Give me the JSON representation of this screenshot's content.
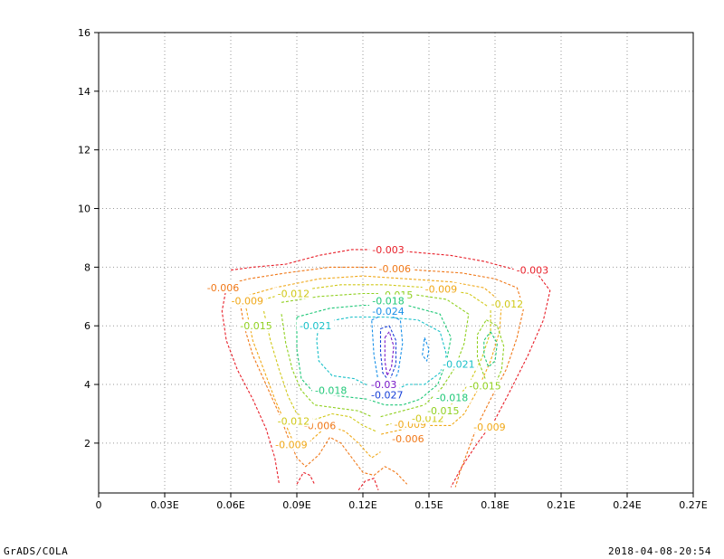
{
  "chart_data": {
    "type": "contour",
    "xlim": [
      0,
      0.27
    ],
    "ylim": [
      0.3,
      16
    ],
    "x_ticks": [
      {
        "value": 0,
        "label": "0"
      },
      {
        "value": 0.03,
        "label": "0.03E"
      },
      {
        "value": 0.06,
        "label": "0.06E"
      },
      {
        "value": 0.09,
        "label": "0.09E"
      },
      {
        "value": 0.12,
        "label": "0.12E"
      },
      {
        "value": 0.15,
        "label": "0.15E"
      },
      {
        "value": 0.18,
        "label": "0.18E"
      },
      {
        "value": 0.21,
        "label": "0.21E"
      },
      {
        "value": 0.24,
        "label": "0.24E"
      },
      {
        "value": 0.27,
        "label": "0.27E"
      }
    ],
    "y_ticks": [
      {
        "value": 2,
        "label": "2"
      },
      {
        "value": 4,
        "label": "4"
      },
      {
        "value": 6,
        "label": "6"
      },
      {
        "value": 8,
        "label": "8"
      },
      {
        "value": 10,
        "label": "10"
      },
      {
        "value": 12,
        "label": "12"
      },
      {
        "value": 14,
        "label": "14"
      },
      {
        "value": 16,
        "label": "16"
      }
    ],
    "grid": true,
    "levels": [
      {
        "value": -0.003,
        "color": "#e8202a",
        "points": [
          [
            0.06,
            7.9
          ],
          [
            0.07,
            8.0
          ],
          [
            0.085,
            8.1
          ],
          [
            0.1,
            8.4
          ],
          [
            0.115,
            8.6
          ],
          [
            0.13,
            8.6
          ],
          [
            0.145,
            8.5
          ],
          [
            0.16,
            8.4
          ],
          [
            0.175,
            8.2
          ],
          [
            0.19,
            7.9
          ],
          [
            0.2,
            7.7
          ],
          [
            0.205,
            7.2
          ],
          [
            0.202,
            6.2
          ],
          [
            0.195,
            5.0
          ],
          [
            0.187,
            3.8
          ],
          [
            0.18,
            2.8
          ],
          [
            0.172,
            2.0
          ],
          [
            0.165,
            1.2
          ],
          [
            0.16,
            0.5
          ]
        ],
        "labels": [
          {
            "x": 0.1315,
            "y": 8.6,
            "text": "-0.003"
          },
          {
            "x": 0.197,
            "y": 7.9,
            "text": "-0.003"
          }
        ]
      },
      {
        "value": -0.003,
        "color": "#e8202a",
        "points": [
          [
            0.058,
            7.3
          ],
          [
            0.056,
            6.5
          ],
          [
            0.058,
            5.5
          ],
          [
            0.063,
            4.5
          ],
          [
            0.07,
            3.5
          ],
          [
            0.076,
            2.5
          ],
          [
            0.08,
            1.5
          ],
          [
            0.082,
            0.6
          ]
        ],
        "labels": []
      },
      {
        "value": -0.003,
        "color": "#e8202a",
        "points": [
          [
            0.09,
            0.6
          ],
          [
            0.093,
            1.0
          ],
          [
            0.096,
            0.9
          ],
          [
            0.098,
            0.6
          ]
        ],
        "labels": []
      },
      {
        "value": -0.003,
        "color": "#e8202a",
        "points": [
          [
            0.118,
            0.4
          ],
          [
            0.121,
            0.7
          ],
          [
            0.125,
            0.8
          ],
          [
            0.127,
            0.4
          ]
        ],
        "labels": []
      },
      {
        "value": -0.006,
        "color": "#f07818",
        "points": [
          [
            0.058,
            7.4
          ],
          [
            0.068,
            7.6
          ],
          [
            0.085,
            7.8
          ],
          [
            0.105,
            8.0
          ],
          [
            0.125,
            8.0
          ],
          [
            0.145,
            7.9
          ],
          [
            0.165,
            7.8
          ],
          [
            0.18,
            7.6
          ],
          [
            0.19,
            7.3
          ],
          [
            0.193,
            6.6
          ],
          [
            0.19,
            5.6
          ],
          [
            0.185,
            4.5
          ],
          [
            0.178,
            3.5
          ],
          [
            0.172,
            2.6
          ],
          [
            0.168,
            1.8
          ],
          [
            0.164,
            1.0
          ],
          [
            0.162,
            0.5
          ]
        ],
        "labels": [
          {
            "x": 0.0565,
            "y": 7.3,
            "text": "-0.006"
          },
          {
            "x": 0.1345,
            "y": 7.95,
            "text": "-0.006"
          },
          {
            "x": 0.1405,
            "y": 2.15,
            "text": "-0.006"
          },
          {
            "x": 0.1005,
            "y": 2.6,
            "text": "-0.006"
          }
        ]
      },
      {
        "value": -0.006,
        "color": "#f07818",
        "points": [
          [
            0.064,
            6.9
          ],
          [
            0.066,
            6.0
          ],
          [
            0.07,
            5.0
          ],
          [
            0.076,
            4.0
          ],
          [
            0.082,
            3.0
          ],
          [
            0.086,
            2.2
          ],
          [
            0.09,
            1.5
          ],
          [
            0.094,
            1.2
          ],
          [
            0.1,
            1.6
          ],
          [
            0.105,
            2.2
          ],
          [
            0.11,
            2.0
          ],
          [
            0.115,
            1.5
          ],
          [
            0.12,
            1.0
          ],
          [
            0.125,
            0.9
          ],
          [
            0.13,
            1.2
          ],
          [
            0.135,
            1.0
          ],
          [
            0.14,
            0.6
          ]
        ],
        "labels": []
      },
      {
        "value": -0.009,
        "color": "#f0a818",
        "points": [
          [
            0.066,
            7.0
          ],
          [
            0.08,
            7.3
          ],
          [
            0.1,
            7.6
          ],
          [
            0.12,
            7.7
          ],
          [
            0.14,
            7.6
          ],
          [
            0.16,
            7.5
          ],
          [
            0.175,
            7.3
          ],
          [
            0.183,
            6.8
          ],
          [
            0.182,
            5.8
          ],
          [
            0.178,
            4.8
          ],
          [
            0.172,
            3.8
          ],
          [
            0.166,
            3.0
          ],
          [
            0.16,
            2.6
          ],
          [
            0.15,
            2.6
          ],
          [
            0.14,
            2.5
          ],
          [
            0.128,
            2.3
          ]
        ],
        "labels": [
          {
            "x": 0.0675,
            "y": 6.85,
            "text": "-0.009"
          },
          {
            "x": 0.1555,
            "y": 7.25,
            "text": "-0.009"
          },
          {
            "x": 0.1415,
            "y": 2.65,
            "text": "-0.009"
          },
          {
            "x": 0.1775,
            "y": 2.55,
            "text": "-0.009"
          },
          {
            "x": 0.0875,
            "y": 1.95,
            "text": "-0.009"
          }
        ]
      },
      {
        "value": -0.009,
        "color": "#f0a818",
        "points": [
          [
            0.067,
            6.6
          ],
          [
            0.07,
            5.5
          ],
          [
            0.075,
            4.5
          ],
          [
            0.08,
            3.5
          ],
          [
            0.084,
            2.8
          ],
          [
            0.088,
            2.1
          ],
          [
            0.092,
            1.8
          ],
          [
            0.098,
            2.2
          ],
          [
            0.104,
            2.6
          ],
          [
            0.112,
            2.4
          ],
          [
            0.118,
            2.0
          ],
          [
            0.124,
            1.5
          ],
          [
            0.128,
            1.7
          ]
        ],
        "labels": []
      },
      {
        "value": -0.012,
        "color": "#d0c818",
        "points": [
          [
            0.075,
            6.9
          ],
          [
            0.09,
            7.2
          ],
          [
            0.11,
            7.4
          ],
          [
            0.13,
            7.4
          ],
          [
            0.15,
            7.3
          ],
          [
            0.168,
            7.1
          ],
          [
            0.178,
            6.6
          ],
          [
            0.178,
            5.8
          ],
          [
            0.174,
            4.9
          ],
          [
            0.168,
            4.0
          ],
          [
            0.16,
            3.3
          ],
          [
            0.15,
            2.9
          ],
          [
            0.14,
            2.8
          ],
          [
            0.13,
            2.6
          ]
        ],
        "labels": [
          {
            "x": 0.0885,
            "y": 7.1,
            "text": "-0.012"
          },
          {
            "x": 0.1855,
            "y": 6.75,
            "text": "-0.012"
          },
          {
            "x": 0.1495,
            "y": 2.85,
            "text": "-0.012"
          },
          {
            "x": 0.0885,
            "y": 2.75,
            "text": "-0.012"
          }
        ]
      },
      {
        "value": -0.012,
        "color": "#d0c818",
        "points": [
          [
            0.075,
            6.5
          ],
          [
            0.078,
            5.5
          ],
          [
            0.082,
            4.5
          ],
          [
            0.086,
            3.6
          ],
          [
            0.09,
            3.0
          ],
          [
            0.098,
            2.8
          ],
          [
            0.106,
            3.0
          ],
          [
            0.114,
            2.9
          ],
          [
            0.12,
            2.6
          ],
          [
            0.126,
            2.4
          ]
        ],
        "labels": []
      },
      {
        "value": -0.015,
        "color": "#90d020",
        "points": [
          [
            0.083,
            6.8
          ],
          [
            0.1,
            7.0
          ],
          [
            0.12,
            7.1
          ],
          [
            0.14,
            7.1
          ],
          [
            0.158,
            6.9
          ],
          [
            0.168,
            6.4
          ],
          [
            0.166,
            5.4
          ],
          [
            0.162,
            4.6
          ],
          [
            0.156,
            3.9
          ],
          [
            0.148,
            3.3
          ],
          [
            0.138,
            3.1
          ],
          [
            0.128,
            2.9
          ]
        ],
        "labels": [
          {
            "x": 0.1355,
            "y": 7.05,
            "text": "-0.015"
          },
          {
            "x": 0.0715,
            "y": 6.0,
            "text": "-0.015"
          },
          {
            "x": 0.1565,
            "y": 3.1,
            "text": "-0.015"
          },
          {
            "x": 0.1755,
            "y": 3.95,
            "text": "-0.015"
          }
        ]
      },
      {
        "value": -0.015,
        "color": "#90d020",
        "points": [
          [
            0.083,
            6.4
          ],
          [
            0.085,
            5.4
          ],
          [
            0.088,
            4.5
          ],
          [
            0.092,
            3.8
          ],
          [
            0.098,
            3.3
          ],
          [
            0.108,
            3.2
          ],
          [
            0.118,
            3.1
          ],
          [
            0.124,
            2.9
          ]
        ],
        "labels": []
      },
      {
        "value": -0.015,
        "color": "#90d020",
        "points": [
          [
            0.176,
            6.2
          ],
          [
            0.181,
            6.0
          ],
          [
            0.184,
            5.3
          ],
          [
            0.183,
            4.5
          ],
          [
            0.18,
            4.0
          ],
          [
            0.176,
            4.1
          ],
          [
            0.172,
            4.9
          ],
          [
            0.172,
            5.7
          ],
          [
            0.176,
            6.2
          ]
        ],
        "labels": []
      },
      {
        "value": -0.018,
        "color": "#20c878",
        "points": [
          [
            0.09,
            6.3
          ],
          [
            0.105,
            6.6
          ],
          [
            0.12,
            6.7
          ],
          [
            0.14,
            6.7
          ],
          [
            0.155,
            6.4
          ],
          [
            0.16,
            5.6
          ],
          [
            0.158,
            4.8
          ],
          [
            0.154,
            4.0
          ],
          [
            0.146,
            3.5
          ],
          [
            0.138,
            3.3
          ],
          [
            0.13,
            3.3
          ],
          [
            0.122,
            3.5
          ],
          [
            0.11,
            3.6
          ],
          [
            0.098,
            3.7
          ],
          [
            0.092,
            4.2
          ],
          [
            0.09,
            5.2
          ],
          [
            0.09,
            6.3
          ]
        ],
        "labels": [
          {
            "x": 0.1315,
            "y": 6.85,
            "text": "-0.018"
          },
          {
            "x": 0.1055,
            "y": 3.8,
            "text": "-0.018"
          },
          {
            "x": 0.1605,
            "y": 3.55,
            "text": "-0.018"
          }
        ]
      },
      {
        "value": -0.018,
        "color": "#20c878",
        "points": [
          [
            0.178,
            5.8
          ],
          [
            0.181,
            5.4
          ],
          [
            0.18,
            4.8
          ],
          [
            0.177,
            4.6
          ],
          [
            0.175,
            5.0
          ],
          [
            0.175,
            5.5
          ],
          [
            0.178,
            5.8
          ]
        ],
        "labels": []
      },
      {
        "value": -0.021,
        "color": "#18c0c8",
        "points": [
          [
            0.1,
            6.1
          ],
          [
            0.115,
            6.3
          ],
          [
            0.13,
            6.3
          ],
          [
            0.145,
            6.2
          ],
          [
            0.155,
            5.8
          ],
          [
            0.158,
            5.0
          ],
          [
            0.155,
            4.4
          ],
          [
            0.148,
            4.0
          ],
          [
            0.14,
            4.0
          ],
          [
            0.132,
            3.7
          ],
          [
            0.124,
            3.9
          ],
          [
            0.116,
            4.2
          ],
          [
            0.106,
            4.3
          ],
          [
            0.1,
            4.8
          ],
          [
            0.099,
            5.5
          ],
          [
            0.1,
            6.1
          ]
        ],
        "labels": [
          {
            "x": 0.0985,
            "y": 6.0,
            "text": "-0.021"
          },
          {
            "x": 0.1635,
            "y": 4.7,
            "text": "-0.021"
          }
        ]
      },
      {
        "value": -0.024,
        "color": "#1890e8",
        "points": [
          [
            0.124,
            6.2
          ],
          [
            0.13,
            6.4
          ],
          [
            0.137,
            6.2
          ],
          [
            0.138,
            5.4
          ],
          [
            0.136,
            4.4
          ],
          [
            0.131,
            3.7
          ],
          [
            0.127,
            4.1
          ],
          [
            0.125,
            5.0
          ],
          [
            0.124,
            6.2
          ]
        ],
        "labels": [
          {
            "x": 0.1315,
            "y": 6.5,
            "text": "-0.024"
          }
        ]
      },
      {
        "value": -0.024,
        "color": "#1890e8",
        "points": [
          [
            0.148,
            5.6
          ],
          [
            0.15,
            5.2
          ],
          [
            0.149,
            4.8
          ],
          [
            0.147,
            5.0
          ],
          [
            0.148,
            5.6
          ]
        ],
        "labels": []
      },
      {
        "value": -0.027,
        "color": "#1840d8",
        "points": [
          [
            0.128,
            5.9
          ],
          [
            0.132,
            6.0
          ],
          [
            0.135,
            5.5
          ],
          [
            0.135,
            4.7
          ],
          [
            0.132,
            4.1
          ],
          [
            0.129,
            4.4
          ],
          [
            0.128,
            5.1
          ],
          [
            0.128,
            5.9
          ]
        ],
        "labels": [
          {
            "x": 0.131,
            "y": 3.65,
            "text": "-0.027"
          }
        ]
      },
      {
        "value": -0.03,
        "color": "#7818c8",
        "points": [
          [
            0.13,
            5.6
          ],
          [
            0.132,
            5.8
          ],
          [
            0.134,
            5.3
          ],
          [
            0.133,
            4.6
          ],
          [
            0.131,
            4.3
          ],
          [
            0.13,
            4.8
          ],
          [
            0.13,
            5.6
          ]
        ],
        "labels": [
          {
            "x": 0.1295,
            "y": 4.0,
            "text": "-0.03"
          }
        ]
      }
    ]
  },
  "footer": {
    "left": "GrADS/COLA",
    "right": "2018-04-08-20:54"
  }
}
